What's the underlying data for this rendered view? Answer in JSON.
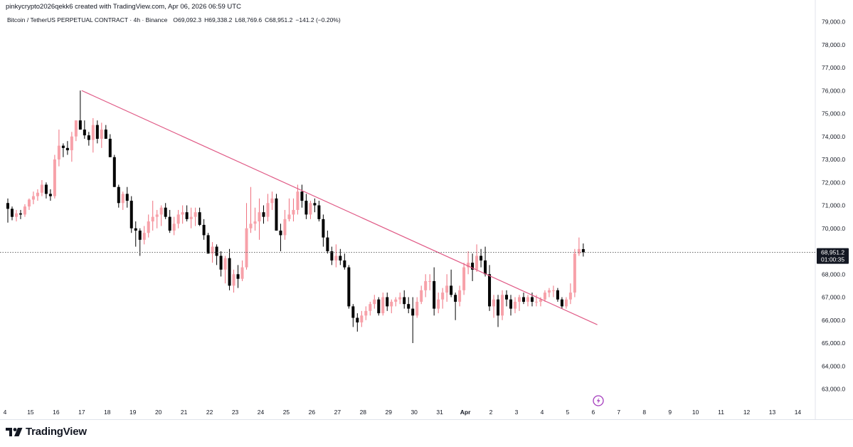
{
  "credit": "pinkycrypto2026qekk6 created with TradingView.com, Apr 06, 2026 06:59 UTC",
  "legend": {
    "symbol": "Bitcoin / TetherUS PERPETUAL CONTRACT",
    "sep1": " · ",
    "interval": "4h",
    "sep2": " · ",
    "exchange": "Binance",
    "o_label": "O",
    "o_value": "69,092.3",
    "h_label": "H",
    "h_value": "69,338.2",
    "l_label": "L",
    "l_value": "68,769.6",
    "c_label": "C",
    "c_value": "68,951.2",
    "change": "−141.2 (−0.20%)"
  },
  "price_tag": {
    "price": "68,951.2",
    "countdown": "01:00:35"
  },
  "brand": "TradingView",
  "colors": {
    "up": "#f7a1a9",
    "up_border": "#ef6f7d",
    "down": "#000000",
    "trendline": "#e05a86",
    "price_line": "#555555",
    "axis_border": "#e0e3eb",
    "bolt": "#a43bbd"
  },
  "chart_data": {
    "type": "candlestick",
    "interval": "4h",
    "y_ticks": [
      63000,
      64000,
      65000,
      66000,
      67000,
      68000,
      69000,
      70000,
      71000,
      72000,
      73000,
      74000,
      75000,
      76000,
      77000,
      78000,
      79000
    ],
    "y_tick_labels": [
      "63,000.0",
      "64,000.0",
      "65,000.0",
      "66,000.0",
      "67,000.0",
      "68,000.0",
      "69,000.0",
      "70,000.0",
      "71,000.0",
      "72,000.0",
      "73,000.0",
      "74,000.0",
      "75,000.0",
      "76,000.0",
      "77,000.0",
      "78,000.0",
      "79,000.0"
    ],
    "ylim": [
      62500,
      79300
    ],
    "x_labels": [
      "4",
      "15",
      "16",
      "17",
      "18",
      "19",
      "20",
      "21",
      "22",
      "23",
      "24",
      "25",
      "26",
      "27",
      "28",
      "29",
      "30",
      "31",
      "Apr",
      "2",
      "3",
      "4",
      "5",
      "6",
      "7",
      "8",
      "9",
      "10",
      "11",
      "12",
      "13",
      "14"
    ],
    "last_price": 68951.2,
    "trendline": {
      "from": [
        3.0,
        76000
      ],
      "to": [
        23.16,
        65800
      ]
    },
    "candles": [
      [
        71100,
        71300,
        70250,
        70850
      ],
      [
        70850,
        70950,
        70350,
        70500
      ],
      [
        70500,
        70800,
        70300,
        70650
      ],
      [
        70650,
        70800,
        70400,
        70600
      ],
      [
        70600,
        71050,
        70500,
        70950
      ],
      [
        70950,
        71300,
        70800,
        71250
      ],
      [
        71250,
        71600,
        71050,
        71400
      ],
      [
        71400,
        71700,
        71200,
        71550
      ],
      [
        71550,
        72100,
        71400,
        71900
      ],
      [
        71900,
        72000,
        71300,
        71500
      ],
      [
        71500,
        71700,
        71200,
        71400
      ],
      [
        71400,
        73200,
        71300,
        73000
      ],
      [
        73000,
        74300,
        72700,
        73600
      ],
      [
        73600,
        73700,
        73100,
        73500
      ],
      [
        73500,
        73800,
        73200,
        73400
      ],
      [
        73400,
        74200,
        72900,
        74000
      ],
      [
        74000,
        74700,
        73800,
        74700
      ],
      [
        74700,
        76000,
        74300,
        74300
      ],
      [
        74300,
        74700,
        73900,
        74050
      ],
      [
        74050,
        74200,
        73600,
        73850
      ],
      [
        73850,
        74800,
        73300,
        74500
      ],
      [
        74500,
        74700,
        73700,
        73900
      ],
      [
        73900,
        74600,
        73500,
        74300
      ],
      [
        74300,
        74500,
        73900,
        73900
      ],
      [
        73900,
        74100,
        73100,
        73100
      ],
      [
        73100,
        73200,
        71800,
        71800
      ],
      [
        71800,
        71900,
        70900,
        71100
      ],
      [
        71100,
        71600,
        70800,
        71500
      ],
      [
        71500,
        71800,
        70900,
        71200
      ],
      [
        71200,
        71400,
        69800,
        70000
      ],
      [
        70000,
        70300,
        69200,
        69900
      ],
      [
        69900,
        70000,
        68800,
        69500
      ],
      [
        69500,
        70100,
        69300,
        69800
      ],
      [
        69800,
        70600,
        69600,
        70300
      ],
      [
        70300,
        71200,
        69900,
        70500
      ],
      [
        70500,
        70800,
        70000,
        70600
      ],
      [
        70600,
        71000,
        70100,
        70900
      ],
      [
        70900,
        71100,
        70400,
        70500
      ],
      [
        70500,
        70800,
        69800,
        69900
      ],
      [
        69900,
        70500,
        69700,
        70200
      ],
      [
        70200,
        70800,
        70000,
        70600
      ],
      [
        70600,
        71000,
        70200,
        70700
      ],
      [
        70700,
        71000,
        70300,
        70400
      ],
      [
        70400,
        70900,
        70000,
        70500
      ],
      [
        70500,
        70900,
        70100,
        70700
      ],
      [
        70700,
        70900,
        70100,
        70150
      ],
      [
        70150,
        70400,
        69500,
        69700
      ],
      [
        69700,
        69800,
        68900,
        68900
      ],
      [
        68900,
        69400,
        68500,
        69200
      ],
      [
        69200,
        69300,
        68400,
        68800
      ],
      [
        68800,
        69000,
        67900,
        68200
      ],
      [
        68200,
        68800,
        67600,
        68700
      ],
      [
        68700,
        69100,
        67300,
        67500
      ],
      [
        67500,
        68200,
        67200,
        68000
      ],
      [
        68000,
        68400,
        67400,
        67800
      ],
      [
        67800,
        68600,
        67700,
        68300
      ],
      [
        68300,
        71100,
        68200,
        70000
      ],
      [
        70000,
        71800,
        69800,
        70200
      ],
      [
        70200,
        70900,
        69900,
        70300
      ],
      [
        70300,
        71300,
        69500,
        70700
      ],
      [
        70700,
        71000,
        70200,
        70500
      ],
      [
        70500,
        71500,
        70300,
        71100
      ],
      [
        71100,
        71600,
        70800,
        71300
      ],
      [
        71300,
        71500,
        69900,
        69900
      ],
      [
        69900,
        70200,
        69000,
        69700
      ],
      [
        69700,
        70800,
        69500,
        70400
      ],
      [
        70400,
        71300,
        70300,
        70600
      ],
      [
        70600,
        71300,
        70300,
        70800
      ],
      [
        70800,
        71900,
        70600,
        71600
      ],
      [
        71600,
        71900,
        70900,
        71200
      ],
      [
        71200,
        71500,
        70400,
        70600
      ],
      [
        70600,
        71200,
        70400,
        71100
      ],
      [
        71100,
        71300,
        70700,
        71000
      ],
      [
        71000,
        71200,
        70300,
        70400
      ],
      [
        70400,
        70600,
        69200,
        69600
      ],
      [
        69600,
        69900,
        68900,
        69000
      ],
      [
        69000,
        69200,
        68400,
        68600
      ],
      [
        68600,
        69300,
        68300,
        68800
      ],
      [
        68800,
        69100,
        68400,
        68600
      ],
      [
        68600,
        68900,
        68200,
        68300
      ],
      [
        68300,
        68400,
        66500,
        66600
      ],
      [
        66600,
        66700,
        65700,
        66100
      ],
      [
        66100,
        66300,
        65500,
        65900
      ],
      [
        65900,
        66400,
        65700,
        66200
      ],
      [
        66200,
        66600,
        66000,
        66400
      ],
      [
        66400,
        66800,
        66200,
        66700
      ],
      [
        66700,
        67100,
        66500,
        66900
      ],
      [
        66900,
        67000,
        66200,
        66300
      ],
      [
        66300,
        67200,
        66200,
        67000
      ],
      [
        67000,
        67200,
        66400,
        66600
      ],
      [
        66600,
        66900,
        66300,
        66800
      ],
      [
        66800,
        67000,
        66600,
        66900
      ],
      [
        66900,
        67200,
        66700,
        67000
      ],
      [
        67000,
        67300,
        66500,
        66700
      ],
      [
        66700,
        67000,
        66300,
        66500
      ],
      [
        66500,
        67000,
        65000,
        66200
      ],
      [
        66200,
        67000,
        66100,
        66800
      ],
      [
        66800,
        67500,
        66700,
        67300
      ],
      [
        67300,
        68000,
        67000,
        67700
      ],
      [
        67700,
        68000,
        67300,
        67700
      ],
      [
        67700,
        68300,
        66200,
        66500
      ],
      [
        66500,
        67200,
        66300,
        66900
      ],
      [
        66900,
        67400,
        66500,
        67200
      ],
      [
        67200,
        68000,
        66800,
        67500
      ],
      [
        67500,
        68200,
        67000,
        67100
      ],
      [
        67100,
        67200,
        66000,
        66800
      ],
      [
        66800,
        67500,
        66600,
        67300
      ],
      [
        67300,
        68500,
        67100,
        68300
      ],
      [
        68300,
        69000,
        68000,
        68500
      ],
      [
        68500,
        68900,
        67700,
        68200
      ],
      [
        68200,
        69300,
        68100,
        68800
      ],
      [
        68800,
        69100,
        68300,
        68600
      ],
      [
        68600,
        69200,
        67900,
        68000
      ],
      [
        68000,
        68400,
        66400,
        66600
      ],
      [
        66600,
        67100,
        66100,
        66900
      ],
      [
        66900,
        67100,
        65700,
        66200
      ],
      [
        66200,
        67300,
        66000,
        67100
      ],
      [
        67100,
        67300,
        66600,
        66900
      ],
      [
        66900,
        67100,
        66200,
        66500
      ],
      [
        66500,
        67000,
        66300,
        66800
      ],
      [
        66800,
        67100,
        66400,
        67000
      ],
      [
        67000,
        67200,
        66700,
        66800
      ],
      [
        66800,
        67100,
        66600,
        67000
      ],
      [
        67000,
        67200,
        66600,
        66800
      ],
      [
        66800,
        67100,
        66600,
        66800
      ],
      [
        66800,
        67000,
        66600,
        66900
      ],
      [
        66900,
        67300,
        66800,
        67200
      ],
      [
        67200,
        67400,
        67000,
        67300
      ],
      [
        67300,
        67500,
        67000,
        67300
      ],
      [
        67300,
        67400,
        66800,
        66900
      ],
      [
        66900,
        67000,
        66500,
        66600
      ],
      [
        66600,
        67000,
        66500,
        66900
      ],
      [
        66900,
        67600,
        66700,
        67200
      ],
      [
        67200,
        69100,
        67000,
        68900
      ],
      [
        68900,
        69600,
        68800,
        69100
      ],
      [
        69092.3,
        69338.2,
        68769.6,
        68951.2
      ]
    ]
  }
}
